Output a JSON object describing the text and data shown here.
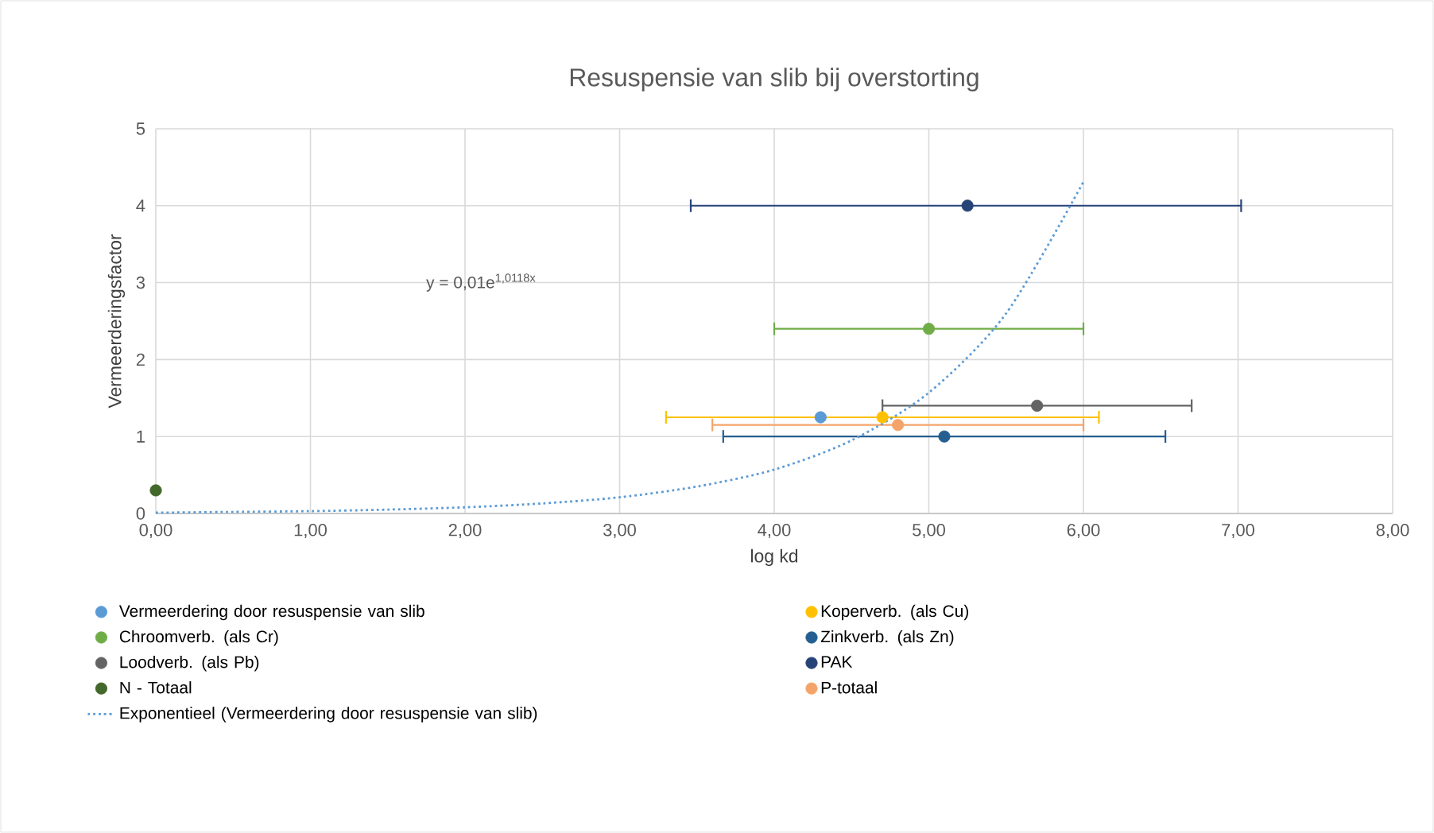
{
  "chart_data": {
    "type": "scatter",
    "title": "Resuspensie  van slib bij overstorting",
    "xlabel": "log kd",
    "ylabel": "Vermeerderingsfactor",
    "xlim": [
      0,
      8
    ],
    "ylim": [
      0,
      5
    ],
    "xticks": [
      {
        "value": 0,
        "label": "0,00"
      },
      {
        "value": 1,
        "label": "1,00"
      },
      {
        "value": 2,
        "label": "2,00"
      },
      {
        "value": 3,
        "label": "3,00"
      },
      {
        "value": 4,
        "label": "4,00"
      },
      {
        "value": 5,
        "label": "5,00"
      },
      {
        "value": 6,
        "label": "6,00"
      },
      {
        "value": 7,
        "label": "7,00"
      },
      {
        "value": 8,
        "label": "8,00"
      }
    ],
    "yticks": [
      0,
      1,
      2,
      3,
      4,
      5
    ],
    "grid": true,
    "legend": "bottom",
    "marker": "circle",
    "annotations": [
      "y = 0,01e$^{1,0118x}$"
    ],
    "series": [
      {
        "name": "Vermeerdering door resuspensie van slib",
        "color": "#5b9bd5",
        "x": [
          4.3
        ],
        "values": [
          1.25
        ],
        "xerrors": [
          null
        ]
      },
      {
        "name": "Koperverb. (als Cu)",
        "color": "#ffc000",
        "x": [
          4.7
        ],
        "values": [
          1.25
        ],
        "xerrors": [
          [
            3.3,
            6.1
          ]
        ]
      },
      {
        "name": "Chroomverb. (als Cr)",
        "color": "#70ad47",
        "x": [
          5.0
        ],
        "values": [
          2.4
        ],
        "xerrors": [
          [
            4.0,
            6.0
          ]
        ]
      },
      {
        "name": "Zinkverb. (als Zn)",
        "color": "#255e91",
        "x": [
          5.1
        ],
        "values": [
          1.0
        ],
        "xerrors": [
          [
            3.67,
            6.53
          ]
        ]
      },
      {
        "name": "Loodverb. (als Pb)",
        "color": "#636363",
        "x": [
          5.7
        ],
        "values": [
          1.4
        ],
        "xerrors": [
          [
            4.7,
            6.7
          ]
        ]
      },
      {
        "name": "PAK",
        "color": "#264478",
        "x": [
          5.25
        ],
        "values": [
          4.0
        ],
        "xerrors": [
          [
            3.46,
            7.02
          ]
        ]
      },
      {
        "name": "N - Totaal",
        "color": "#43682b",
        "x": [
          0.0
        ],
        "values": [
          0.3
        ],
        "xerrors": [
          null
        ]
      },
      {
        "name": "P-totaal",
        "color": "#f4a46a",
        "x": [
          4.8
        ],
        "values": [
          1.15
        ],
        "xerrors": [
          [
            3.6,
            6.0
          ]
        ]
      },
      {
        "name": "Exponentieel (Vermeerdering door resuspensie van slib)",
        "type": "line",
        "line_style": "dotted",
        "marker": "none",
        "color": "#5b9bd5",
        "x": [
          0,
          0.5,
          1,
          1.5,
          2,
          2.5,
          3,
          3.5,
          4,
          4.5,
          5,
          5.5,
          6
        ],
        "values": [
          0.01,
          0.02,
          0.03,
          0.05,
          0.08,
          0.13,
          0.21,
          0.35,
          0.57,
          0.95,
          1.57,
          2.6,
          4.31
        ]
      }
    ]
  }
}
